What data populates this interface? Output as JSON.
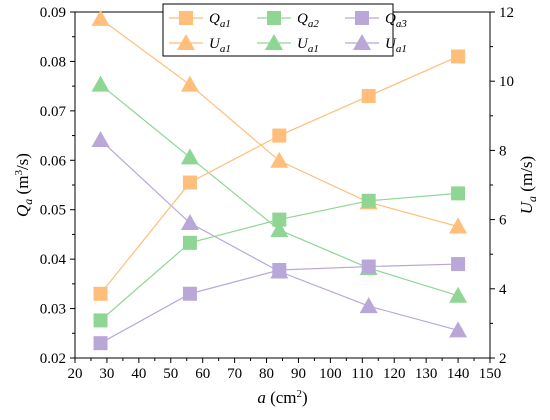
{
  "chart_data": {
    "type": "line",
    "x": [
      28,
      56,
      84,
      112,
      140
    ],
    "xlabel": {
      "base": "a",
      "unit": " (cm",
      "sup": "2",
      "close": ")"
    },
    "ylabel_left": {
      "base": "Q",
      "sub": "a",
      "unit": " (m",
      "sup": "3",
      "close": "/s)"
    },
    "ylabel_right": {
      "base": "U",
      "sub": "a",
      "unit": " (m/s)"
    },
    "xlim": [
      20,
      150
    ],
    "ylim_left": [
      0.02,
      0.09
    ],
    "ylim_right": [
      2,
      12
    ],
    "xticks": [
      "20",
      "30",
      "40",
      "50",
      "60",
      "70",
      "80",
      "90",
      "100",
      "110",
      "120",
      "130",
      "140",
      "150"
    ],
    "yticks_left": [
      "0.02",
      "0.03",
      "0.04",
      "0.05",
      "0.06",
      "0.07",
      "0.08",
      "0.09"
    ],
    "yticks_right": [
      "2",
      "4",
      "6",
      "8",
      "10",
      "12"
    ],
    "grid": false,
    "legend": "top-center",
    "series": [
      {
        "name": "Qa1",
        "label_base": "Q",
        "label_sub": "a1",
        "axis": "left",
        "marker": "square",
        "color": "#FFBE7A",
        "values": [
          0.033,
          0.0555,
          0.065,
          0.073,
          0.081
        ]
      },
      {
        "name": "Qa2",
        "label_base": "Q",
        "label_sub": "a2",
        "axis": "left",
        "marker": "square",
        "color": "#8FD694",
        "values": [
          0.0276,
          0.0433,
          0.048,
          0.0518,
          0.0533
        ]
      },
      {
        "name": "Qa3",
        "label_base": "Q",
        "label_sub": "a3",
        "axis": "left",
        "marker": "square",
        "color": "#B9A7D8",
        "values": [
          0.023,
          0.033,
          0.0378,
          0.0385,
          0.039
        ]
      },
      {
        "name": "Ua1",
        "label_base": "U",
        "label_sub": "a1",
        "axis": "right",
        "marker": "triangle",
        "color": "#FFBE7A",
        "values": [
          11.8,
          9.9,
          7.7,
          6.5,
          5.8
        ]
      },
      {
        "name": "Ua1",
        "label_base": "U",
        "label_sub": "a1",
        "axis": "right",
        "marker": "triangle",
        "color": "#8FD694",
        "values": [
          9.9,
          7.8,
          5.7,
          4.6,
          3.8
        ]
      },
      {
        "name": "Ua1",
        "label_base": "U",
        "label_sub": "a1",
        "axis": "right",
        "marker": "triangle",
        "color": "#B9A7D8",
        "values": [
          8.3,
          5.9,
          4.5,
          3.5,
          2.8
        ]
      }
    ]
  }
}
